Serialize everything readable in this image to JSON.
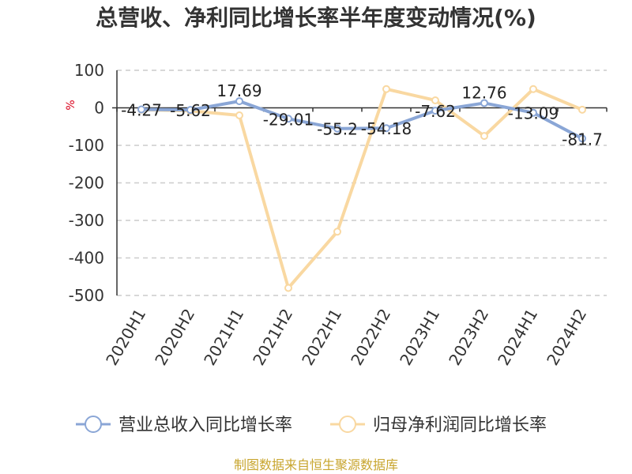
{
  "chart_data": {
    "type": "line",
    "title": "总营收、净利同比增长率半年度变动情况(%)",
    "ylabel": "%",
    "xlabel": "",
    "categories": [
      "2020H1",
      "2020H2",
      "2021H1",
      "2021H2",
      "2022H1",
      "2022H2",
      "2023H1",
      "2023H2",
      "2024H1",
      "2024H2"
    ],
    "ylim": [
      -500,
      100
    ],
    "yticks": [
      100,
      0,
      -100,
      -200,
      -300,
      -400,
      -500
    ],
    "grid": true,
    "legend_position": "bottom",
    "series": [
      {
        "name": "营业总收入同比增长率",
        "color": "#8aa6d6",
        "values": [
          -4.27,
          -5.62,
          17.69,
          -29.01,
          -55.2,
          -54.18,
          -7.62,
          12.76,
          -13.09,
          -81.7
        ],
        "labels": [
          "-4.27",
          "-5.62",
          "17.69",
          "-29.01",
          "-55.2",
          "-54.18",
          "-7.62",
          "12.76",
          "-13.09",
          "-81.7"
        ]
      },
      {
        "name": "归母净利润同比增长率",
        "color": "#f9d8a1",
        "values": [
          -5,
          -8,
          -20,
          -480,
          -330,
          50,
          20,
          -75,
          50,
          -5
        ]
      }
    ]
  },
  "source": "制图数据来自恒生聚源数据库"
}
